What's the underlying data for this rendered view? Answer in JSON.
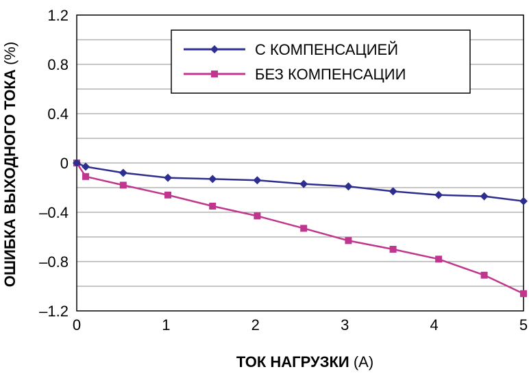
{
  "chart_data": {
    "type": "line",
    "title": "",
    "xlabel": "ТОК НАГРУЗКИ",
    "xlabel_unit": "(А)",
    "ylabel": "ОШИБКА ВЫХОДНОГО ТОКА",
    "ylabel_unit": "(%)",
    "xlim": [
      0,
      5
    ],
    "ylim": [
      -1.2,
      1.2
    ],
    "x_ticks": [
      "0",
      "1",
      "2",
      "3",
      "4",
      "5"
    ],
    "y_ticks": [
      "1.2",
      "0.8",
      "0.4",
      "0",
      "–0.4",
      "–0.8",
      "–1.2"
    ],
    "y_tick_values": [
      1.2,
      0.8,
      0.4,
      0,
      -0.4,
      -0.8,
      -1.2
    ],
    "x_tick_values": [
      0,
      1,
      2,
      3,
      4,
      5
    ],
    "grid": true,
    "legend_position": "top-right",
    "series": [
      {
        "name": "С КОМПЕНСАЦИЕЙ",
        "marker": "diamond",
        "color": "#2e2e8f",
        "x": [
          0,
          0.1,
          0.52,
          1.02,
          1.52,
          2.02,
          2.54,
          3.04,
          3.54,
          4.05,
          4.56,
          5.0
        ],
        "y": [
          0,
          -0.03,
          -0.08,
          -0.12,
          -0.13,
          -0.14,
          -0.17,
          -0.19,
          -0.23,
          -0.26,
          -0.27,
          -0.31
        ]
      },
      {
        "name": "БЕЗ КОМПЕНСАЦИИ",
        "marker": "square",
        "color": "#c0368f",
        "x": [
          0,
          0.1,
          0.52,
          1.02,
          1.52,
          2.02,
          2.54,
          3.04,
          3.54,
          4.05,
          4.56,
          5.0
        ],
        "y": [
          0,
          -0.11,
          -0.18,
          -0.26,
          -0.35,
          -0.43,
          -0.53,
          -0.63,
          -0.7,
          -0.78,
          -0.91,
          -1.06
        ]
      }
    ]
  }
}
